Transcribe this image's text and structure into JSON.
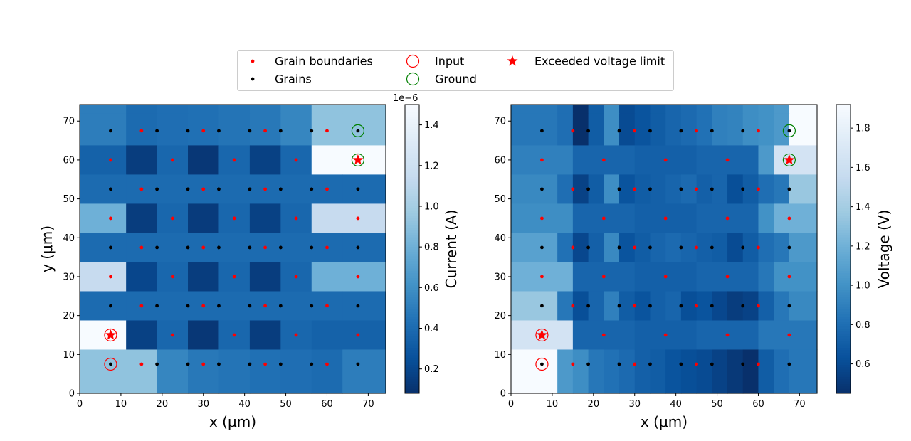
{
  "chart_data": [
    {
      "type": "heatmap",
      "title": "",
      "xlabel": "x (μm)",
      "ylabel": "y (μm)",
      "xlim": [
        0,
        74.25
      ],
      "ylim": [
        0,
        74.25
      ],
      "xticks": [
        "0",
        "10",
        "20",
        "30",
        "40",
        "50",
        "60",
        "70"
      ],
      "yticks": [
        "0",
        "10",
        "20",
        "30",
        "40",
        "50",
        "60",
        "70"
      ],
      "colorbar": {
        "label": "Current (A)",
        "exponent": "1e−6",
        "range": [
          0.08,
          1.5
        ],
        "ticks": [
          "0.2",
          "0.4",
          "0.6",
          "0.8",
          "1.0",
          "1.2",
          "1.4"
        ]
      },
      "rows": [
        {
          "y": 67.5,
          "type": "grain",
          "values": [
            0.5,
            0.4,
            0.42,
            0.43,
            0.45,
            0.47,
            0.55,
            0.92,
            0.92
          ]
        },
        {
          "y": 60,
          "type": "boundary",
          "values": [
            0.35,
            0.15,
            0.38,
            0.12,
            0.38,
            0.17,
            0.38,
            1.5
          ]
        },
        {
          "y": 52.5,
          "type": "grain",
          "values": [
            0.4,
            0.4,
            0.4,
            0.4,
            0.4,
            0.4,
            0.4,
            0.4,
            0.4
          ]
        },
        {
          "y": 45,
          "type": "boundary",
          "values": [
            0.8,
            0.15,
            0.38,
            0.14,
            0.38,
            0.17,
            0.38,
            1.15
          ]
        },
        {
          "y": 37.5,
          "type": "grain",
          "values": [
            0.4,
            0.4,
            0.4,
            0.4,
            0.4,
            0.4,
            0.4,
            0.4,
            0.4
          ]
        },
        {
          "y": 30,
          "type": "boundary",
          "values": [
            1.15,
            0.2,
            0.38,
            0.15,
            0.38,
            0.15,
            0.38,
            0.8
          ]
        },
        {
          "y": 22.5,
          "type": "grain",
          "values": [
            0.4,
            0.4,
            0.4,
            0.4,
            0.4,
            0.4,
            0.4,
            0.4,
            0.4
          ]
        },
        {
          "y": 15,
          "type": "boundary",
          "values": [
            1.5,
            0.17,
            0.38,
            0.12,
            0.38,
            0.15,
            0.38,
            0.35
          ]
        },
        {
          "y": 7.5,
          "type": "grain",
          "values": [
            0.92,
            0.92,
            0.55,
            0.47,
            0.45,
            0.43,
            0.42,
            0.4,
            0.5
          ]
        }
      ]
    },
    {
      "type": "heatmap",
      "title": "",
      "xlabel": "x (μm)",
      "ylabel": "",
      "xlim": [
        0,
        74.25
      ],
      "ylim": [
        0,
        74.25
      ],
      "xticks": [
        "0",
        "10",
        "20",
        "30",
        "40",
        "50",
        "60",
        "70"
      ],
      "yticks": [
        "0",
        "10",
        "20",
        "30",
        "40",
        "50",
        "60",
        "70"
      ],
      "colorbar": {
        "label": "Voltage (V)",
        "exponent": "",
        "range": [
          0.45,
          1.92
        ],
        "ticks": [
          "0.6",
          "0.8",
          "1.0",
          "1.2",
          "1.4",
          "1.6",
          "1.8"
        ]
      },
      "rows": [
        {
          "y": 67.5,
          "type": "grain",
          "values": [
            0.85,
            0.8,
            0.45,
            0.7,
            0.98,
            0.6,
            0.65,
            0.7,
            0.75,
            0.78,
            0.82,
            0.9,
            0.92,
            0.98,
            1.0,
            1.05,
            1.92
          ]
        },
        {
          "y": 60,
          "type": "boundary",
          "values": [
            0.9,
            0.75,
            0.72,
            0.75,
            1.05,
            1.65
          ]
        },
        {
          "y": 52.5,
          "type": "grain",
          "values": [
            0.95,
            0.8,
            0.55,
            0.7,
            0.98,
            0.65,
            0.7,
            0.72,
            0.75,
            0.78,
            0.72,
            0.75,
            0.62,
            0.7,
            0.8,
            0.85,
            1.35
          ]
        },
        {
          "y": 45,
          "type": "boundary",
          "values": [
            0.98,
            0.75,
            0.72,
            0.75,
            1.0,
            1.2
          ]
        },
        {
          "y": 37.5,
          "type": "grain",
          "values": [
            1.1,
            0.82,
            0.58,
            0.72,
            0.95,
            0.65,
            0.7,
            0.75,
            0.78,
            0.75,
            0.72,
            0.7,
            0.6,
            0.7,
            0.8,
            0.85,
            1.05
          ]
        },
        {
          "y": 30,
          "type": "boundary",
          "values": [
            1.2,
            0.75,
            0.72,
            0.75,
            0.85,
            1.0
          ]
        },
        {
          "y": 22.5,
          "type": "grain",
          "values": [
            1.35,
            0.85,
            0.62,
            0.75,
            0.9,
            0.7,
            0.65,
            0.72,
            0.75,
            0.62,
            0.65,
            0.58,
            0.52,
            0.55,
            0.72,
            0.85,
            0.95
          ]
        },
        {
          "y": 15,
          "type": "boundary",
          "values": [
            1.65,
            0.75,
            0.72,
            0.75,
            0.85,
            0.85
          ]
        },
        {
          "y": 7.5,
          "type": "grain",
          "values": [
            1.92,
            1.05,
            0.98,
            0.85,
            0.82,
            0.78,
            0.72,
            0.7,
            0.65,
            0.62,
            0.6,
            0.55,
            0.5,
            0.45,
            0.7,
            0.8,
            0.85
          ]
        }
      ]
    }
  ],
  "points": {
    "grains": [
      [
        7.5,
        67.5
      ],
      [
        18.75,
        67.5
      ],
      [
        26.25,
        67.5
      ],
      [
        33.75,
        67.5
      ],
      [
        41.25,
        67.5
      ],
      [
        48.75,
        67.5
      ],
      [
        56.25,
        67.5
      ],
      [
        67.5,
        67.5
      ],
      [
        7.5,
        52.5
      ],
      [
        18.75,
        52.5
      ],
      [
        26.25,
        52.5
      ],
      [
        33.75,
        52.5
      ],
      [
        41.25,
        52.5
      ],
      [
        48.75,
        52.5
      ],
      [
        56.25,
        52.5
      ],
      [
        67.5,
        52.5
      ],
      [
        7.5,
        37.5
      ],
      [
        18.75,
        37.5
      ],
      [
        26.25,
        37.5
      ],
      [
        33.75,
        37.5
      ],
      [
        41.25,
        37.5
      ],
      [
        48.75,
        37.5
      ],
      [
        56.25,
        37.5
      ],
      [
        67.5,
        37.5
      ],
      [
        7.5,
        22.5
      ],
      [
        18.75,
        22.5
      ],
      [
        26.25,
        22.5
      ],
      [
        33.75,
        22.5
      ],
      [
        41.25,
        22.5
      ],
      [
        48.75,
        22.5
      ],
      [
        56.25,
        22.5
      ],
      [
        67.5,
        22.5
      ],
      [
        7.5,
        7.5
      ],
      [
        18.75,
        7.5
      ],
      [
        26.25,
        7.5
      ],
      [
        33.75,
        7.5
      ],
      [
        41.25,
        7.5
      ],
      [
        48.75,
        7.5
      ],
      [
        56.25,
        7.5
      ],
      [
        67.5,
        7.5
      ]
    ],
    "boundaries": [
      [
        15,
        67.5
      ],
      [
        30,
        67.5
      ],
      [
        45,
        67.5
      ],
      [
        60,
        67.5
      ],
      [
        15,
        52.5
      ],
      [
        30,
        52.5
      ],
      [
        45,
        52.5
      ],
      [
        60,
        52.5
      ],
      [
        15,
        37.5
      ],
      [
        30,
        37.5
      ],
      [
        45,
        37.5
      ],
      [
        60,
        37.5
      ],
      [
        15,
        22.5
      ],
      [
        30,
        22.5
      ],
      [
        45,
        22.5
      ],
      [
        60,
        22.5
      ],
      [
        15,
        7.5
      ],
      [
        30,
        7.5
      ],
      [
        45,
        7.5
      ],
      [
        60,
        7.5
      ],
      [
        7.5,
        60
      ],
      [
        22.5,
        60
      ],
      [
        37.5,
        60
      ],
      [
        52.5,
        60
      ],
      [
        67.5,
        60
      ],
      [
        7.5,
        45
      ],
      [
        22.5,
        45
      ],
      [
        37.5,
        45
      ],
      [
        52.5,
        45
      ],
      [
        67.5,
        45
      ],
      [
        7.5,
        30
      ],
      [
        22.5,
        30
      ],
      [
        37.5,
        30
      ],
      [
        52.5,
        30
      ],
      [
        67.5,
        30
      ],
      [
        7.5,
        15
      ],
      [
        22.5,
        15
      ],
      [
        37.5,
        15
      ],
      [
        52.5,
        15
      ],
      [
        67.5,
        15
      ]
    ],
    "input": [
      [
        7.5,
        15
      ],
      [
        7.5,
        7.5
      ]
    ],
    "ground": [
      [
        67.5,
        67.5
      ],
      [
        67.5,
        60
      ]
    ],
    "exceeded": [
      [
        7.5,
        15
      ],
      [
        67.5,
        60
      ]
    ]
  },
  "legend": {
    "placement": "top-center",
    "items": [
      {
        "key": "boundaries",
        "label": "Grain boundaries",
        "marker": "dot",
        "color": "#ff0000"
      },
      {
        "key": "grains",
        "label": "Grains",
        "marker": "dot",
        "color": "#000000"
      },
      {
        "key": "input",
        "label": "Input",
        "marker": "circle",
        "color": "#ff0000"
      },
      {
        "key": "ground",
        "label": "Ground",
        "marker": "circle",
        "color": "#008000"
      },
      {
        "key": "exceeded",
        "label": "Exceeded voltage limit",
        "marker": "star",
        "color": "#ff0000"
      }
    ]
  },
  "colors": {
    "colormap": "Blues_r",
    "boundary_point": "#ff0000",
    "grain_point": "#000000",
    "input_ring": "#ff0000",
    "ground_ring": "#008000",
    "star": "#ff0000"
  }
}
